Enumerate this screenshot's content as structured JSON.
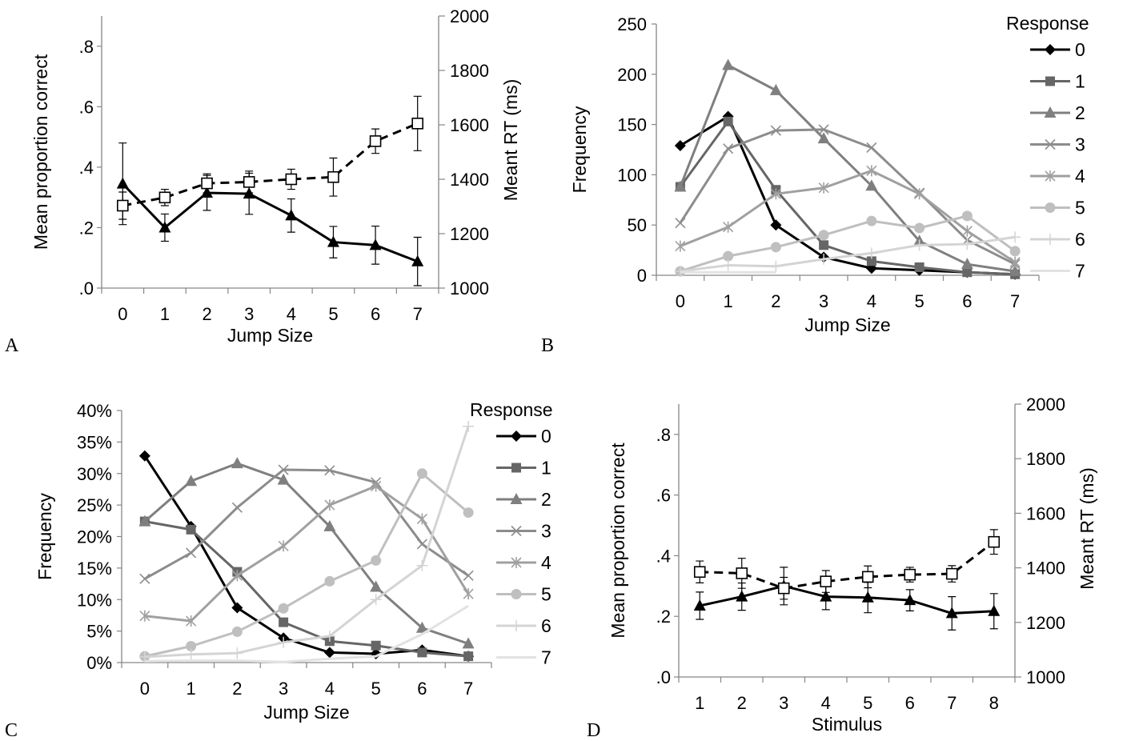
{
  "chart_data": [
    {
      "panel": "A",
      "type": "line",
      "xlabel": "Jump Size",
      "ylabel": "Mean proportion correct",
      "y2label": "Meant RT (ms)",
      "categories": [
        "0",
        "1",
        "2",
        "3",
        "4",
        "5",
        "6",
        "7"
      ],
      "ylim": [
        0,
        0.9
      ],
      "yticks": [
        ".0",
        ".2",
        ".4",
        ".6",
        ".8"
      ],
      "y2lim": [
        1000,
        2000
      ],
      "y2ticks": [
        "1000",
        "1200",
        "1400",
        "1600",
        "1800",
        "2000"
      ],
      "series": [
        {
          "axis": "left",
          "style": "solid",
          "marker": "triangle",
          "color": "#000000",
          "values": [
            0.345,
            0.2,
            0.315,
            0.312,
            0.24,
            0.152,
            0.142,
            0.088
          ],
          "err": [
            0.135,
            0.045,
            0.058,
            0.068,
            0.055,
            0.052,
            0.063,
            0.08
          ]
        },
        {
          "axis": "right",
          "style": "dashed",
          "marker": "open-square",
          "color": "#000000",
          "values": [
            1303,
            1333,
            1385,
            1390,
            1400,
            1408,
            1540,
            1605
          ],
          "err": [
            50,
            30,
            35,
            40,
            37,
            70,
            45,
            100
          ]
        }
      ]
    },
    {
      "panel": "B",
      "type": "line",
      "xlabel": "Jump Size",
      "ylabel": "Frequency",
      "categories": [
        "0",
        "1",
        "2",
        "3",
        "4",
        "5",
        "6",
        "7"
      ],
      "ylim": [
        0,
        250
      ],
      "yticks": [
        "0",
        "50",
        "100",
        "150",
        "200",
        "250"
      ],
      "legend_title": "Response",
      "legend_position": "right",
      "series": [
        {
          "name": "0",
          "marker": "diamond",
          "color": "#000000",
          "values": [
            129,
            158,
            50,
            18,
            7,
            5,
            3,
            1
          ]
        },
        {
          "name": "1",
          "marker": "square",
          "color": "#666666",
          "values": [
            88,
            153,
            85,
            30,
            14,
            8,
            3,
            1
          ]
        },
        {
          "name": "2",
          "marker": "triangle",
          "color": "#7f7f7f",
          "values": [
            88,
            209,
            184,
            136,
            89,
            34,
            11,
            4
          ]
        },
        {
          "name": "3",
          "marker": "x",
          "color": "#8c8c8c",
          "values": [
            52,
            126,
            144,
            145,
            127,
            82,
            35,
            11
          ]
        },
        {
          "name": "4",
          "marker": "star",
          "color": "#a0a0a0",
          "values": [
            29,
            48,
            81,
            87,
            104,
            81,
            44,
            13
          ]
        },
        {
          "name": "5",
          "marker": "circle",
          "color": "#bfbfbf",
          "values": [
            4,
            19,
            28,
            40,
            54,
            47,
            59,
            24
          ]
        },
        {
          "name": "6",
          "marker": "plus",
          "color": "#d4d4d4",
          "values": [
            4,
            10,
            9,
            16,
            22,
            30,
            31,
            38
          ]
        },
        {
          "name": "7",
          "marker": "none",
          "color": "#e2e2e2",
          "values": [
            3,
            3,
            3,
            null,
            null,
            null,
            null,
            null
          ]
        }
      ]
    },
    {
      "panel": "C",
      "type": "line",
      "xlabel": "Jump Size",
      "ylabel": "Frequency",
      "categories": [
        "0",
        "1",
        "2",
        "3",
        "4",
        "5",
        "6",
        "7"
      ],
      "ylim": [
        0,
        40
      ],
      "yticks": [
        "0%",
        "5%",
        "10%",
        "15%",
        "20%",
        "25%",
        "30%",
        "35%",
        "40%"
      ],
      "legend_title": "Response",
      "legend_position": "right",
      "series": [
        {
          "name": "0",
          "marker": "diamond",
          "color": "#000000",
          "values": [
            32.8,
            21.6,
            8.7,
            3.9,
            1.6,
            1.4,
            2.0,
            1.0
          ]
        },
        {
          "name": "1",
          "marker": "square",
          "color": "#666666",
          "values": [
            22.4,
            21.1,
            14.4,
            6.4,
            3.4,
            2.7,
            1.6,
            1.0
          ]
        },
        {
          "name": "2",
          "marker": "triangle",
          "color": "#7f7f7f",
          "values": [
            22.4,
            28.8,
            31.6,
            29.0,
            21.6,
            12.0,
            5.5,
            3.0
          ]
        },
        {
          "name": "3",
          "marker": "x",
          "color": "#8c8c8c",
          "values": [
            13.3,
            17.4,
            24.6,
            30.6,
            30.5,
            28.6,
            18.8,
            13.8
          ]
        },
        {
          "name": "4",
          "marker": "star",
          "color": "#a0a0a0",
          "values": [
            7.4,
            6.6,
            13.8,
            18.5,
            25.0,
            28.0,
            22.8,
            10.9
          ]
        },
        {
          "name": "5",
          "marker": "circle",
          "color": "#bfbfbf",
          "values": [
            1.0,
            2.6,
            4.9,
            8.6,
            12.9,
            16.2,
            30.0,
            23.8
          ]
        },
        {
          "name": "6",
          "marker": "plus",
          "color": "#d4d4d4",
          "values": [
            0.9,
            1.3,
            1.5,
            3.2,
            4.2,
            10.0,
            15.4,
            37.5
          ]
        },
        {
          "name": "7",
          "marker": "none",
          "color": "#e2e2e2",
          "values": [
            0.2,
            0.3,
            0.3,
            0.1,
            0.6,
            1.0,
            4.5,
            9.0
          ]
        }
      ]
    },
    {
      "panel": "D",
      "type": "line",
      "xlabel": "Stimulus",
      "ylabel": "Mean proportion correct",
      "y2label": "Meant RT (ms)",
      "categories": [
        "1",
        "2",
        "3",
        "4",
        "5",
        "6",
        "7",
        "8"
      ],
      "ylim": [
        0,
        0.9
      ],
      "yticks": [
        ".0",
        ".2",
        ".4",
        ".6",
        ".8"
      ],
      "y2lim": [
        1000,
        2000
      ],
      "y2ticks": [
        "1000",
        "1200",
        "1400",
        "1600",
        "1800",
        "2000"
      ],
      "series": [
        {
          "axis": "left",
          "style": "solid",
          "marker": "triangle",
          "color": "#000000",
          "values": [
            0.235,
            0.265,
            0.3,
            0.265,
            0.262,
            0.253,
            0.21,
            0.217
          ],
          "err": [
            0.045,
            0.045,
            0.062,
            0.043,
            0.05,
            0.035,
            0.055,
            0.058
          ]
        },
        {
          "axis": "right",
          "style": "dashed",
          "marker": "open-square",
          "color": "#000000",
          "values": [
            1385,
            1380,
            1325,
            1350,
            1367,
            1375,
            1378,
            1495
          ],
          "err": [
            40,
            55,
            40,
            40,
            40,
            27,
            30,
            45
          ]
        }
      ]
    }
  ],
  "panel_labels": [
    "A",
    "B",
    "C",
    "D"
  ],
  "figure": {
    "background": "#ffffff",
    "axis_color": "#868686"
  }
}
